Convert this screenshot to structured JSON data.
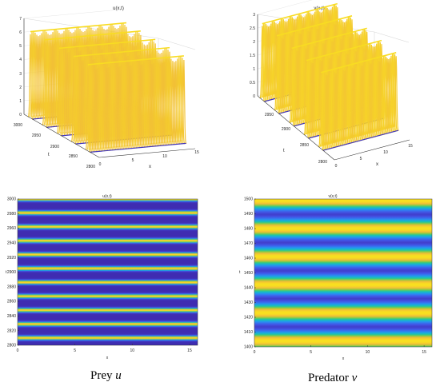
{
  "captions": {
    "left_label": "Prey",
    "left_symbol": "u",
    "right_label": "Predator",
    "right_symbol": "v"
  },
  "colormap": [
    "#3e26a8",
    "#4352e6",
    "#2d88f3",
    "#13b5d5",
    "#2cc88e",
    "#97cb3c",
    "#f1bb3a",
    "#f9e11e"
  ],
  "chart_data": [
    {
      "id": "u-surface",
      "type": "surface",
      "title": "u(x,t)",
      "xlabel": "x",
      "ylabel": "t",
      "zlabel": "",
      "xlim": [
        0,
        15
      ],
      "ylim": [
        2800,
        3000
      ],
      "zlim": [
        0,
        7
      ],
      "x_ticks": [
        "0",
        "5",
        "10",
        "15"
      ],
      "y_ticks": [
        "2800",
        "2850",
        "2900",
        "2950",
        "3000"
      ],
      "z_ticks": [
        "0",
        "1",
        "2",
        "3",
        "4",
        "5",
        "6",
        "7"
      ],
      "peak_value": 6.3,
      "peak_times": [
        2830,
        2868,
        2906,
        2945,
        2983
      ]
    },
    {
      "id": "v-surface",
      "type": "surface",
      "title": "v(x,t)",
      "xlabel": "x",
      "ylabel": "t",
      "zlabel": "",
      "xlim": [
        0,
        15
      ],
      "ylim": [
        2800,
        3000
      ],
      "zlim": [
        0,
        3
      ],
      "x_ticks": [
        "0",
        "5",
        "10",
        "15"
      ],
      "y_ticks": [
        "2800",
        "2850",
        "2900",
        "2950"
      ],
      "z_ticks": [
        "0",
        "0.5",
        "1",
        "1.5",
        "2",
        "2.5",
        "3"
      ],
      "peak_value": 2.8,
      "peak_times": [
        2835,
        2873,
        2911,
        2950,
        2988
      ]
    },
    {
      "id": "u-heatmap",
      "type": "heatmap",
      "title": "u(x,t)",
      "xlabel": "x",
      "ylabel": "t",
      "xlim": [
        0,
        15.7
      ],
      "ylim": [
        2800,
        3000
      ],
      "x_ticks": [
        0,
        5,
        10,
        15
      ],
      "y_ticks": [
        2800,
        2820,
        2840,
        2860,
        2880,
        2900,
        2920,
        2940,
        2960,
        2980,
        3000
      ],
      "band_centers": [
        2810,
        2829,
        2848,
        2867,
        2886,
        2905,
        2924,
        2943,
        2962,
        2981,
        3000
      ]
    },
    {
      "id": "v-heatmap",
      "type": "heatmap",
      "title": "v(x,t)",
      "xlabel": "x",
      "ylabel": "t",
      "xlim": [
        0,
        15.7
      ],
      "ylim": [
        1400,
        1500
      ],
      "x_ticks": [
        0,
        5,
        10,
        15
      ],
      "y_ticks": [
        1400,
        1410,
        1420,
        1430,
        1440,
        1450,
        1460,
        1470,
        1480,
        1490,
        1500
      ],
      "band_centers": [
        1404,
        1423,
        1442,
        1461,
        1480,
        1499
      ]
    }
  ]
}
